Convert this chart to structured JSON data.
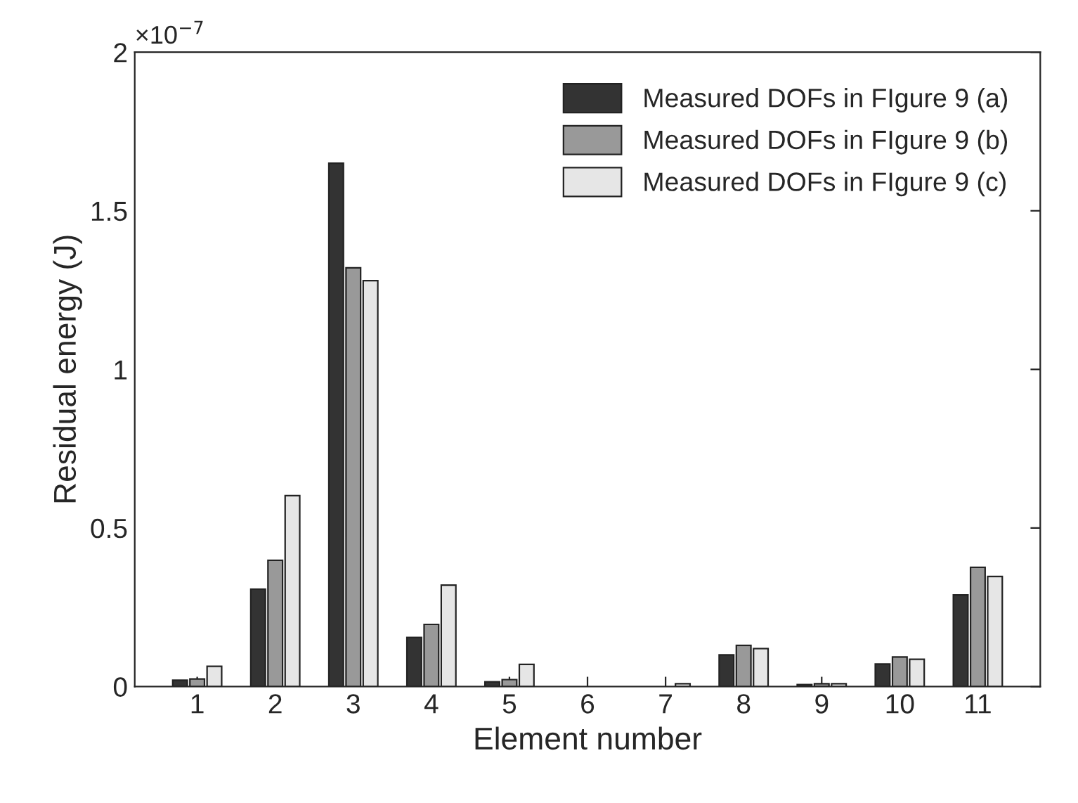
{
  "chart_data": {
    "type": "bar",
    "xlabel": "Element number",
    "ylabel": "Residual energy (J)",
    "categories": [
      "1",
      "2",
      "3",
      "4",
      "5",
      "6",
      "7",
      "8",
      "9",
      "10",
      "11"
    ],
    "series": [
      {
        "name": "Measured DOFs in FIgure 9 (a)",
        "color": "#333333",
        "values": [
          0.02,
          0.307,
          1.65,
          0.155,
          0.015,
          null,
          null,
          0.1,
          0.006,
          0.071,
          0.289
        ]
      },
      {
        "name": "Measured DOFs in FIgure 9 (b)",
        "color": "#999999",
        "values": [
          0.024,
          0.398,
          1.32,
          0.196,
          0.022,
          null,
          null,
          0.13,
          0.009,
          0.093,
          0.376
        ]
      },
      {
        "name": "Measured DOFs in FIgure 9 (c)",
        "color": "#e6e6e6",
        "values": [
          0.064,
          0.602,
          1.28,
          0.32,
          0.07,
          null,
          0.009,
          0.12,
          0.009,
          0.086,
          0.347
        ]
      }
    ],
    "ylim": [
      0,
      2
    ],
    "yticks": [
      0,
      0.5,
      1,
      1.5,
      2
    ],
    "annotations": [
      "×10$^{−7}$"
    ],
    "legend": "top right",
    "grid": false
  }
}
